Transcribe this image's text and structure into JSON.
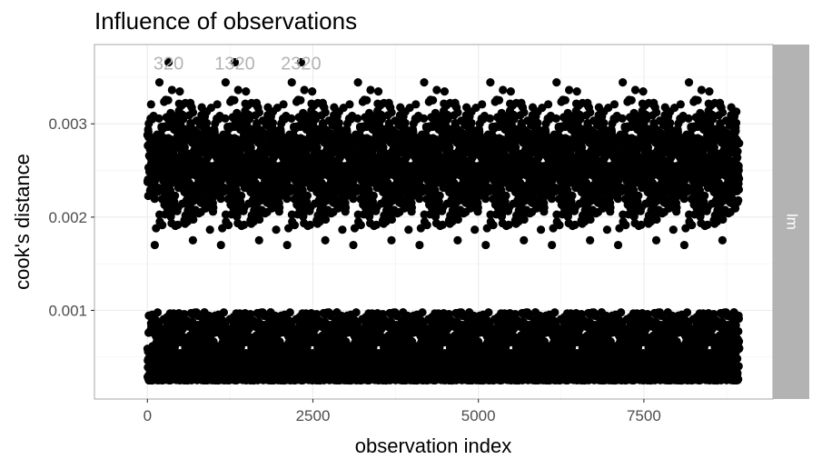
{
  "chart_data": {
    "type": "scatter",
    "title": "Influence of observations",
    "xlabel": "observation index",
    "ylabel": "cook's distance",
    "facet_label": "lm",
    "xlim": [
      -800,
      9450
    ],
    "ylim": [
      5e-05,
      0.00385
    ],
    "x_ticks": [
      0,
      2500,
      5000,
      7500
    ],
    "x_tick_labels": [
      "0",
      "2500",
      "5000",
      "7500"
    ],
    "y_ticks": [
      0.001,
      0.002,
      0.003
    ],
    "y_tick_labels": [
      "0.001",
      "0.002",
      "0.003"
    ],
    "grid": true,
    "n_points": 8940,
    "period": 1000,
    "point_color": "#000000",
    "strip_color": "#b3b3b3",
    "clusters": [
      {
        "name": "high",
        "min": 0.00148,
        "max": 0.00365,
        "share": 0.5
      },
      {
        "name": "low",
        "min": 0.00025,
        "max": 0.00098,
        "share": 0.5
      }
    ],
    "labeled_points": [
      {
        "label": "320",
        "x": 320,
        "y": 0.00366
      },
      {
        "label": "1320",
        "x": 1320,
        "y": 0.00366
      },
      {
        "label": "2320",
        "x": 2320,
        "y": 0.00366
      }
    ]
  }
}
